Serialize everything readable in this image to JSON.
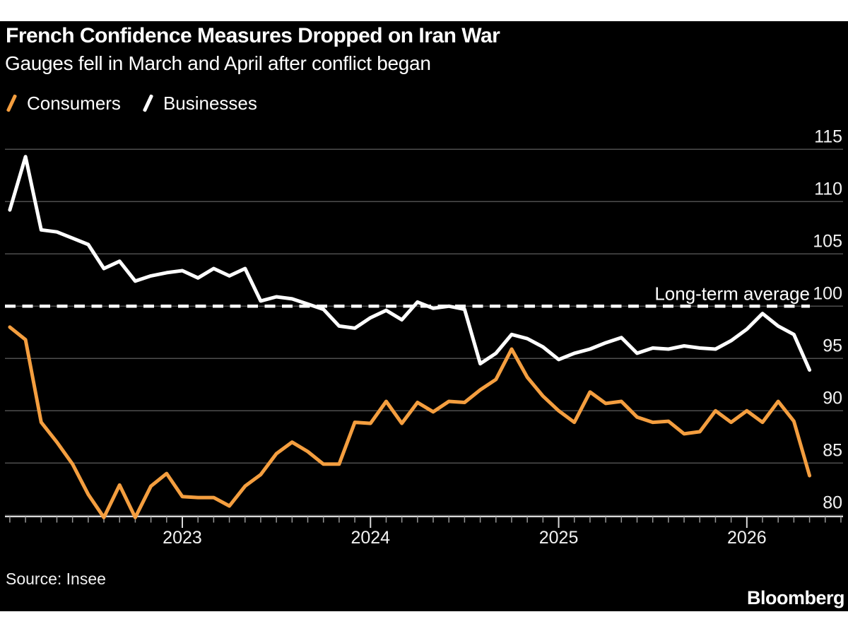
{
  "header": {
    "title": "French Confidence Measures Dropped on Iran War",
    "subtitle": "Gauges fell in March and April after conflict began"
  },
  "footer": {
    "source": "Source: Insee",
    "brand": "Bloomberg"
  },
  "colors": {
    "background": "#000000",
    "page_margin": "#ffffff",
    "grid": "#4e4e4e",
    "axis": "#d9d9d9",
    "minor_tick": "#979797",
    "label_text": "#f2f2f2",
    "average_line": "#ffffff"
  },
  "chart_data": {
    "type": "line",
    "x_frequency": "monthly",
    "x_tick_labels": [
      "2023",
      "2024",
      "2025",
      "2026"
    ],
    "y_ticks": [
      115,
      110,
      105,
      100,
      95,
      90,
      85,
      80
    ],
    "y_axis_side": "right",
    "average_line": {
      "value": 100,
      "label": "Long-term average"
    },
    "series": [
      {
        "name": "Consumers",
        "color": "#f49e3f",
        "values": [
          98.0,
          96.8,
          88.9,
          87.0,
          84.9,
          82.0,
          79.8,
          82.9,
          79.8,
          82.8,
          84.0,
          81.8,
          81.7,
          81.7,
          80.9,
          82.8,
          83.9,
          85.9,
          87.0,
          86.1,
          84.9,
          84.9,
          88.9,
          88.8,
          90.9,
          88.8,
          90.8,
          89.9,
          90.9,
          90.8,
          92.0,
          93.0,
          95.9,
          93.2,
          91.4,
          90.0,
          88.9,
          91.8,
          90.7,
          90.9,
          89.4,
          88.9,
          89.0,
          87.8,
          88.0,
          90.0,
          88.9,
          90.0,
          88.9,
          90.9,
          89.0,
          83.8
        ]
      },
      {
        "name": "Businesses",
        "color": "#ffffff",
        "values": [
          109.2,
          114.3,
          107.3,
          107.1,
          106.5,
          105.9,
          103.6,
          104.3,
          102.4,
          102.9,
          103.2,
          103.4,
          102.7,
          103.6,
          102.9,
          103.6,
          100.5,
          100.9,
          100.7,
          100.2,
          99.7,
          98.1,
          97.9,
          98.9,
          99.6,
          98.7,
          100.4,
          99.8,
          100.0,
          99.7,
          94.5,
          95.5,
          97.3,
          96.9,
          96.1,
          94.9,
          95.5,
          95.9,
          96.5,
          97.0,
          95.5,
          96.0,
          95.9,
          96.2,
          96.0,
          95.9,
          96.7,
          97.8,
          99.3,
          98.1,
          97.3,
          93.9
        ]
      }
    ]
  }
}
